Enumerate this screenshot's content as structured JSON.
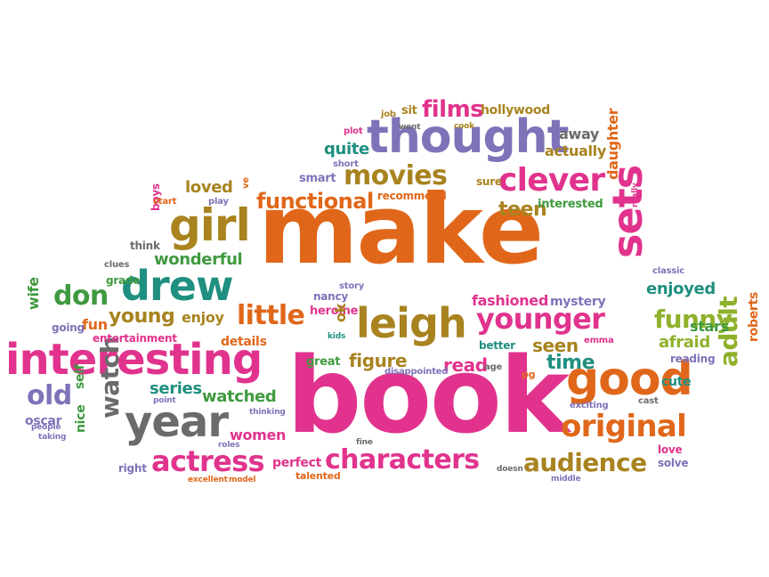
{
  "palette": {
    "orange": "#e0671a",
    "pink": "#e1338d",
    "purple": "#7f72b8",
    "olive": "#a8831f",
    "green": "#3f9a3f",
    "lime": "#8fb12b",
    "teal": "#1f8f80",
    "gray": "#6b6b6b",
    "brown": "#8e6a2b"
  },
  "words": [
    {
      "text": "make",
      "color": "orange"
    },
    {
      "text": "book",
      "color": "pink"
    },
    {
      "text": "interesting",
      "color": "pink"
    },
    {
      "text": "thought",
      "color": "purple"
    },
    {
      "text": "leigh",
      "color": "olive"
    },
    {
      "text": "drew",
      "color": "teal"
    },
    {
      "text": "girl",
      "color": "olive"
    },
    {
      "text": "year",
      "color": "gray"
    },
    {
      "text": "good",
      "color": "orange"
    },
    {
      "text": "characters",
      "color": "pink"
    },
    {
      "text": "actress",
      "color": "pink"
    },
    {
      "text": "original",
      "color": "orange"
    },
    {
      "text": "sets",
      "color": "pink"
    },
    {
      "text": "clever",
      "color": "pink"
    },
    {
      "text": "younger",
      "color": "pink"
    },
    {
      "text": "movies",
      "color": "olive"
    },
    {
      "text": "functional",
      "color": "orange"
    },
    {
      "text": "little",
      "color": "orange"
    },
    {
      "text": "audience",
      "color": "olive"
    },
    {
      "text": "funny",
      "color": "lime"
    },
    {
      "text": "adult",
      "color": "lime"
    },
    {
      "text": "don",
      "color": "green"
    },
    {
      "text": "old",
      "color": "purple"
    },
    {
      "text": "watch",
      "color": "gray"
    },
    {
      "text": "young",
      "color": "olive"
    },
    {
      "text": "films",
      "color": "pink"
    },
    {
      "text": "teen",
      "color": "olive"
    },
    {
      "text": "time",
      "color": "teal"
    },
    {
      "text": "seen",
      "color": "olive"
    },
    {
      "text": "figure",
      "color": "olive"
    },
    {
      "text": "read",
      "color": "pink"
    },
    {
      "text": "wonderful",
      "color": "green"
    },
    {
      "text": "series",
      "color": "teal"
    },
    {
      "text": "watched",
      "color": "green"
    },
    {
      "text": "afraid",
      "color": "lime"
    },
    {
      "text": "enjoyed",
      "color": "teal"
    },
    {
      "text": "stars",
      "color": "green"
    },
    {
      "text": "daughter",
      "color": "orange"
    },
    {
      "text": "quite",
      "color": "teal"
    },
    {
      "text": "loved",
      "color": "olive"
    },
    {
      "text": "actually",
      "color": "olive"
    },
    {
      "text": "away",
      "color": "gray"
    },
    {
      "text": "hollywood",
      "color": "olive"
    },
    {
      "text": "fashioned",
      "color": "pink"
    },
    {
      "text": "mystery",
      "color": "purple"
    },
    {
      "text": "perfect",
      "color": "pink"
    },
    {
      "text": "women",
      "color": "pink"
    },
    {
      "text": "enjoy",
      "color": "olive"
    },
    {
      "text": "fun",
      "color": "orange"
    },
    {
      "text": "wife",
      "color": "green"
    },
    {
      "text": "self",
      "color": "green"
    },
    {
      "text": "nice",
      "color": "green"
    },
    {
      "text": "oscar",
      "color": "purple"
    },
    {
      "text": "roberts",
      "color": "orange"
    },
    {
      "text": "reading",
      "color": "purple"
    },
    {
      "text": "cute",
      "color": "teal"
    },
    {
      "text": "love",
      "color": "pink"
    },
    {
      "text": "solve",
      "color": "purple"
    },
    {
      "text": "details",
      "color": "orange"
    },
    {
      "text": "great",
      "color": "green"
    },
    {
      "text": "heroine",
      "color": "pink"
    },
    {
      "text": "nancy",
      "color": "purple"
    },
    {
      "text": "ok",
      "color": "olive"
    },
    {
      "text": "smart",
      "color": "purple"
    },
    {
      "text": "short",
      "color": "purple"
    },
    {
      "text": "plot",
      "color": "pink"
    },
    {
      "text": "went",
      "color": "gray"
    },
    {
      "text": "job",
      "color": "olive"
    },
    {
      "text": "sit",
      "color": "olive"
    },
    {
      "text": "cook",
      "color": "olive"
    },
    {
      "text": "sure",
      "color": "olive"
    },
    {
      "text": "interested",
      "color": "green"
    },
    {
      "text": "recommend",
      "color": "orange"
    },
    {
      "text": "entertainment",
      "color": "pink"
    },
    {
      "text": "going",
      "color": "purple"
    },
    {
      "text": "grade",
      "color": "green"
    },
    {
      "text": "clues",
      "color": "gray"
    },
    {
      "text": "think",
      "color": "gray"
    },
    {
      "text": "boys",
      "color": "pink"
    },
    {
      "text": "start",
      "color": "orange"
    },
    {
      "text": "play",
      "color": "purple"
    },
    {
      "text": "ve",
      "color": "orange"
    },
    {
      "text": "story",
      "color": "purple"
    },
    {
      "text": "kids",
      "color": "teal"
    },
    {
      "text": "better",
      "color": "teal"
    },
    {
      "text": "emma",
      "color": "pink"
    },
    {
      "text": "age",
      "color": "gray"
    },
    {
      "text": "pg",
      "color": "orange"
    },
    {
      "text": "disappointed",
      "color": "purple"
    },
    {
      "text": "exciting",
      "color": "purple"
    },
    {
      "text": "cast",
      "color": "gray"
    },
    {
      "text": "classic",
      "color": "purple"
    },
    {
      "text": "really",
      "color": "pink"
    },
    {
      "text": "point",
      "color": "purple"
    },
    {
      "text": "thinking",
      "color": "purple"
    },
    {
      "text": "people",
      "color": "purple"
    },
    {
      "text": "taking",
      "color": "purple"
    },
    {
      "text": "right",
      "color": "purple"
    },
    {
      "text": "roles",
      "color": "purple"
    },
    {
      "text": "talented",
      "color": "orange"
    },
    {
      "text": "excellent",
      "color": "orange"
    },
    {
      "text": "model",
      "color": "orange"
    },
    {
      "text": "fine",
      "color": "gray"
    },
    {
      "text": "doesn",
      "color": "gray"
    },
    {
      "text": "middle",
      "color": "purple"
    }
  ]
}
